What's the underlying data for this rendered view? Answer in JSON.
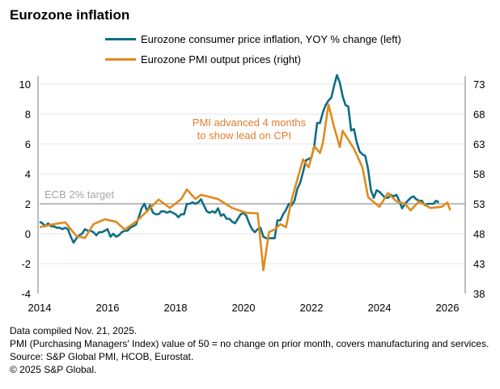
{
  "colors": {
    "cpi": "#0f6e84",
    "pmi": "#e08a1e",
    "annotation": "#e07f2f",
    "target": "#a6a6a6",
    "grid": "#e6e6e6",
    "axis": "#a6a6a6"
  },
  "chart_data": {
    "type": "line",
    "title": "Eurozone inflation",
    "legend_position": "top",
    "grid": true,
    "x_ticks": [
      "2014",
      "2016",
      "2018",
      "2020",
      "2022",
      "2024",
      "2026"
    ],
    "xlim": [
      "2014-01",
      "2026-07"
    ],
    "y_left": {
      "ticks": [
        "-4",
        "-2",
        "0",
        "2",
        "4",
        "6",
        "8",
        "10"
      ],
      "ylim": [
        -4,
        10
      ]
    },
    "y_right": {
      "ticks": [
        "38",
        "43",
        "48",
        "53",
        "58",
        "63",
        "68",
        "73"
      ],
      "ylim": [
        38,
        73
      ]
    },
    "reference_line": {
      "value": 2,
      "label": "ECB 2% target"
    },
    "annotation": [
      "PMI advanced  4 months",
      "to show lead on CPI"
    ],
    "series": [
      {
        "name": "Eurozone consumer price inflation, YOY % change (left)",
        "axis": "left",
        "start": "2014-01",
        "values": [
          0.8,
          0.7,
          0.5,
          0.7,
          0.5,
          0.5,
          0.4,
          0.4,
          0.3,
          0.4,
          0.3,
          -0.2,
          -0.6,
          -0.3,
          -0.1,
          0.0,
          0.3,
          0.2,
          0.2,
          0.1,
          -0.1,
          0.1,
          0.1,
          0.2,
          0.3,
          -0.2,
          0.0,
          -0.2,
          -0.1,
          0.1,
          0.2,
          0.2,
          0.4,
          0.5,
          0.6,
          1.1,
          1.7,
          2.0,
          1.5,
          1.9,
          1.4,
          1.3,
          1.3,
          1.5,
          1.5,
          1.4,
          1.5,
          1.4,
          1.3,
          1.1,
          1.3,
          1.3,
          2.0,
          2.0,
          2.1,
          2.0,
          2.1,
          2.3,
          1.9,
          1.5,
          1.4,
          1.5,
          1.4,
          1.7,
          1.2,
          1.3,
          1.0,
          1.0,
          0.8,
          0.7,
          1.0,
          1.3,
          1.4,
          1.2,
          0.7,
          0.3,
          0.1,
          0.3,
          0.4,
          -0.2,
          -0.3,
          -0.3,
          -0.3,
          -0.3,
          0.9,
          0.9,
          1.3,
          1.6,
          2.0,
          1.9,
          2.2,
          3.0,
          3.4,
          4.1,
          4.9,
          5.0,
          5.1,
          5.9,
          7.4,
          7.4,
          8.1,
          8.6,
          8.9,
          9.1,
          9.9,
          10.6,
          10.1,
          9.2,
          8.6,
          8.5,
          6.9,
          7.0,
          6.1,
          5.5,
          5.3,
          5.2,
          4.3,
          2.9,
          2.4,
          2.9,
          2.8,
          2.6,
          2.4,
          2.4,
          2.6,
          2.5,
          2.6,
          2.2,
          1.7,
          2.0,
          2.2,
          2.4,
          2.5,
          2.3,
          2.2,
          2.2,
          1.9,
          2.0,
          2.0,
          2.0,
          2.2,
          2.1
        ]
      },
      {
        "name": "Eurozone PMI output prices (right)",
        "axis": "right",
        "points": [
          [
            "2014-01",
            49.1
          ],
          [
            "2014-06",
            49.6
          ],
          [
            "2014-10",
            49.9
          ],
          [
            "2015-02",
            47.6
          ],
          [
            "2015-05",
            47.3
          ],
          [
            "2015-08",
            49.6
          ],
          [
            "2015-12",
            50.4
          ],
          [
            "2016-04",
            50.0
          ],
          [
            "2016-07",
            48.7
          ],
          [
            "2016-11",
            50.0
          ],
          [
            "2017-03",
            51.8
          ],
          [
            "2017-07",
            53.7
          ],
          [
            "2017-11",
            52.3
          ],
          [
            "2018-03",
            53.8
          ],
          [
            "2018-05",
            55.4
          ],
          [
            "2018-08",
            53.8
          ],
          [
            "2018-10",
            54.5
          ],
          [
            "2019-04",
            53.8
          ],
          [
            "2019-09",
            52.3
          ],
          [
            "2020-02",
            51.5
          ],
          [
            "2020-06",
            51.4
          ],
          [
            "2020-08",
            41.9
          ],
          [
            "2020-10",
            48.3
          ],
          [
            "2020-12",
            48.7
          ],
          [
            "2021-02",
            49.6
          ],
          [
            "2021-04",
            49.1
          ],
          [
            "2021-06",
            53.7
          ],
          [
            "2021-10",
            60.4
          ],
          [
            "2021-12",
            59.1
          ],
          [
            "2022-02",
            62.6
          ],
          [
            "2022-04",
            61.5
          ],
          [
            "2022-05",
            63.1
          ],
          [
            "2022-07",
            69.6
          ],
          [
            "2022-09",
            65.8
          ],
          [
            "2022-11",
            62.5
          ],
          [
            "2022-12",
            65.2
          ],
          [
            "2023-04",
            62.2
          ],
          [
            "2023-07",
            59.1
          ],
          [
            "2023-09",
            54.1
          ],
          [
            "2024-01",
            52.5
          ],
          [
            "2024-04",
            54.8
          ],
          [
            "2024-07",
            53.4
          ],
          [
            "2024-10",
            53.0
          ],
          [
            "2024-12",
            51.9
          ],
          [
            "2025-03",
            53.4
          ],
          [
            "2025-07",
            52.3
          ],
          [
            "2025-11",
            52.5
          ],
          [
            "2026-01",
            53.2
          ],
          [
            "2026-02",
            51.9
          ]
        ]
      }
    ]
  },
  "footnotes": [
    "Data compiled Nov. 21, 2025.",
    "PMI (Purchasing Managers' Index) value of 50 = no change on prior month, covers manufacturing and services.",
    "Source: S&P Global PMI, HCOB, Eurostat.",
    "© 2025 S&P Global."
  ]
}
